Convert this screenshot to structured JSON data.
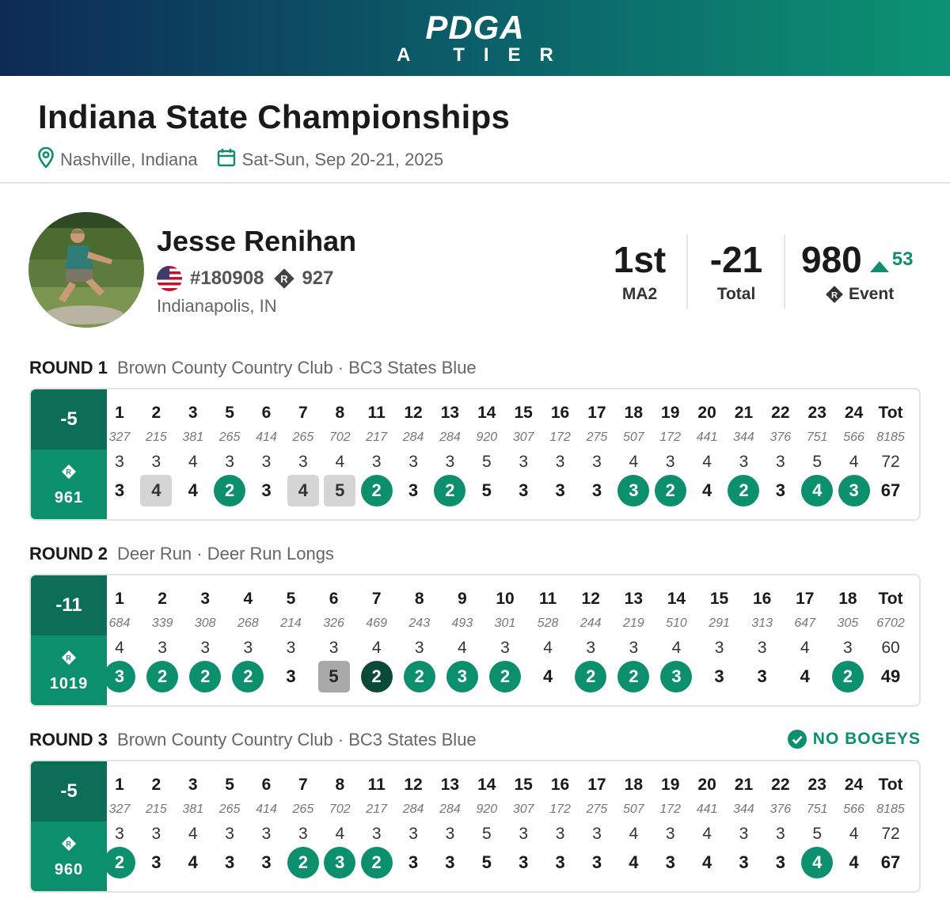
{
  "banner": {
    "logo": "PDGA",
    "tier": "A TIER"
  },
  "event": {
    "title": "Indiana State Championships",
    "location": "Nashville, Indiana",
    "dates": "Sat-Sun, Sep 20-21, 2025"
  },
  "player": {
    "name": "Jesse Renihan",
    "pdga_number": "#180908",
    "rating": "927",
    "city": "Indianapolis, IN"
  },
  "stats": {
    "place": "1st",
    "division": "MA2",
    "total": "-21",
    "total_label": "Total",
    "event_rating": "980",
    "rating_change": "53",
    "event_label": "Event"
  },
  "colors": {
    "brand_green": "#0c8f6c",
    "brand_dark": "#0d6e57",
    "eagle": "#0a4a36"
  },
  "rounds": [
    {
      "label": "ROUND 1",
      "course": "Brown County Country Club · BC3 States Blue",
      "relative": "-5",
      "rating": "961",
      "holes": [
        "1",
        "2",
        "3",
        "5",
        "6",
        "7",
        "8",
        "11",
        "12",
        "13",
        "14",
        "15",
        "16",
        "17",
        "18",
        "19",
        "20",
        "21",
        "22",
        "23",
        "24",
        "Tot"
      ],
      "distances": [
        "327",
        "215",
        "381",
        "265",
        "414",
        "265",
        "702",
        "217",
        "284",
        "284",
        "920",
        "307",
        "172",
        "275",
        "507",
        "172",
        "441",
        "344",
        "376",
        "751",
        "566",
        "8185"
      ],
      "pars": [
        "3",
        "3",
        "4",
        "3",
        "3",
        "3",
        "4",
        "3",
        "3",
        "3",
        "5",
        "3",
        "3",
        "3",
        "4",
        "3",
        "4",
        "3",
        "3",
        "5",
        "4",
        "72"
      ],
      "scores": [
        "3",
        "4",
        "4",
        "2",
        "3",
        "4",
        "5",
        "2",
        "3",
        "2",
        "5",
        "3",
        "3",
        "3",
        "3",
        "2",
        "4",
        "2",
        "3",
        "4",
        "3",
        "67"
      ]
    },
    {
      "label": "ROUND 2",
      "course": "Deer Run · Deer Run Longs",
      "relative": "-11",
      "rating": "1019",
      "holes": [
        "1",
        "2",
        "3",
        "4",
        "5",
        "6",
        "7",
        "8",
        "9",
        "10",
        "11",
        "12",
        "13",
        "14",
        "15",
        "16",
        "17",
        "18",
        "Tot"
      ],
      "distances": [
        "684",
        "339",
        "308",
        "268",
        "214",
        "326",
        "469",
        "243",
        "493",
        "301",
        "528",
        "244",
        "219",
        "510",
        "291",
        "313",
        "647",
        "305",
        "6702"
      ],
      "pars": [
        "4",
        "3",
        "3",
        "3",
        "3",
        "3",
        "4",
        "3",
        "4",
        "3",
        "4",
        "3",
        "3",
        "4",
        "3",
        "3",
        "4",
        "3",
        "60"
      ],
      "scores": [
        "3",
        "2",
        "2",
        "2",
        "3",
        "5",
        "2",
        "2",
        "3",
        "2",
        "4",
        "2",
        "2",
        "3",
        "3",
        "3",
        "4",
        "2",
        "49"
      ]
    },
    {
      "label": "ROUND 3",
      "course": "Brown County Country Club · BC3 States Blue",
      "badge": "NO BOGEYS",
      "relative": "-5",
      "rating": "960",
      "holes": [
        "1",
        "2",
        "3",
        "5",
        "6",
        "7",
        "8",
        "11",
        "12",
        "13",
        "14",
        "15",
        "16",
        "17",
        "18",
        "19",
        "20",
        "21",
        "22",
        "23",
        "24",
        "Tot"
      ],
      "distances": [
        "327",
        "215",
        "381",
        "265",
        "414",
        "265",
        "702",
        "217",
        "284",
        "284",
        "920",
        "307",
        "172",
        "275",
        "507",
        "172",
        "441",
        "344",
        "376",
        "751",
        "566",
        "8185"
      ],
      "pars": [
        "3",
        "3",
        "4",
        "3",
        "3",
        "3",
        "4",
        "3",
        "3",
        "3",
        "5",
        "3",
        "3",
        "3",
        "4",
        "3",
        "4",
        "3",
        "3",
        "5",
        "4",
        "72"
      ],
      "scores": [
        "2",
        "3",
        "4",
        "3",
        "3",
        "2",
        "3",
        "2",
        "3",
        "3",
        "5",
        "3",
        "3",
        "3",
        "4",
        "3",
        "4",
        "3",
        "3",
        "4",
        "4",
        "67"
      ]
    }
  ]
}
